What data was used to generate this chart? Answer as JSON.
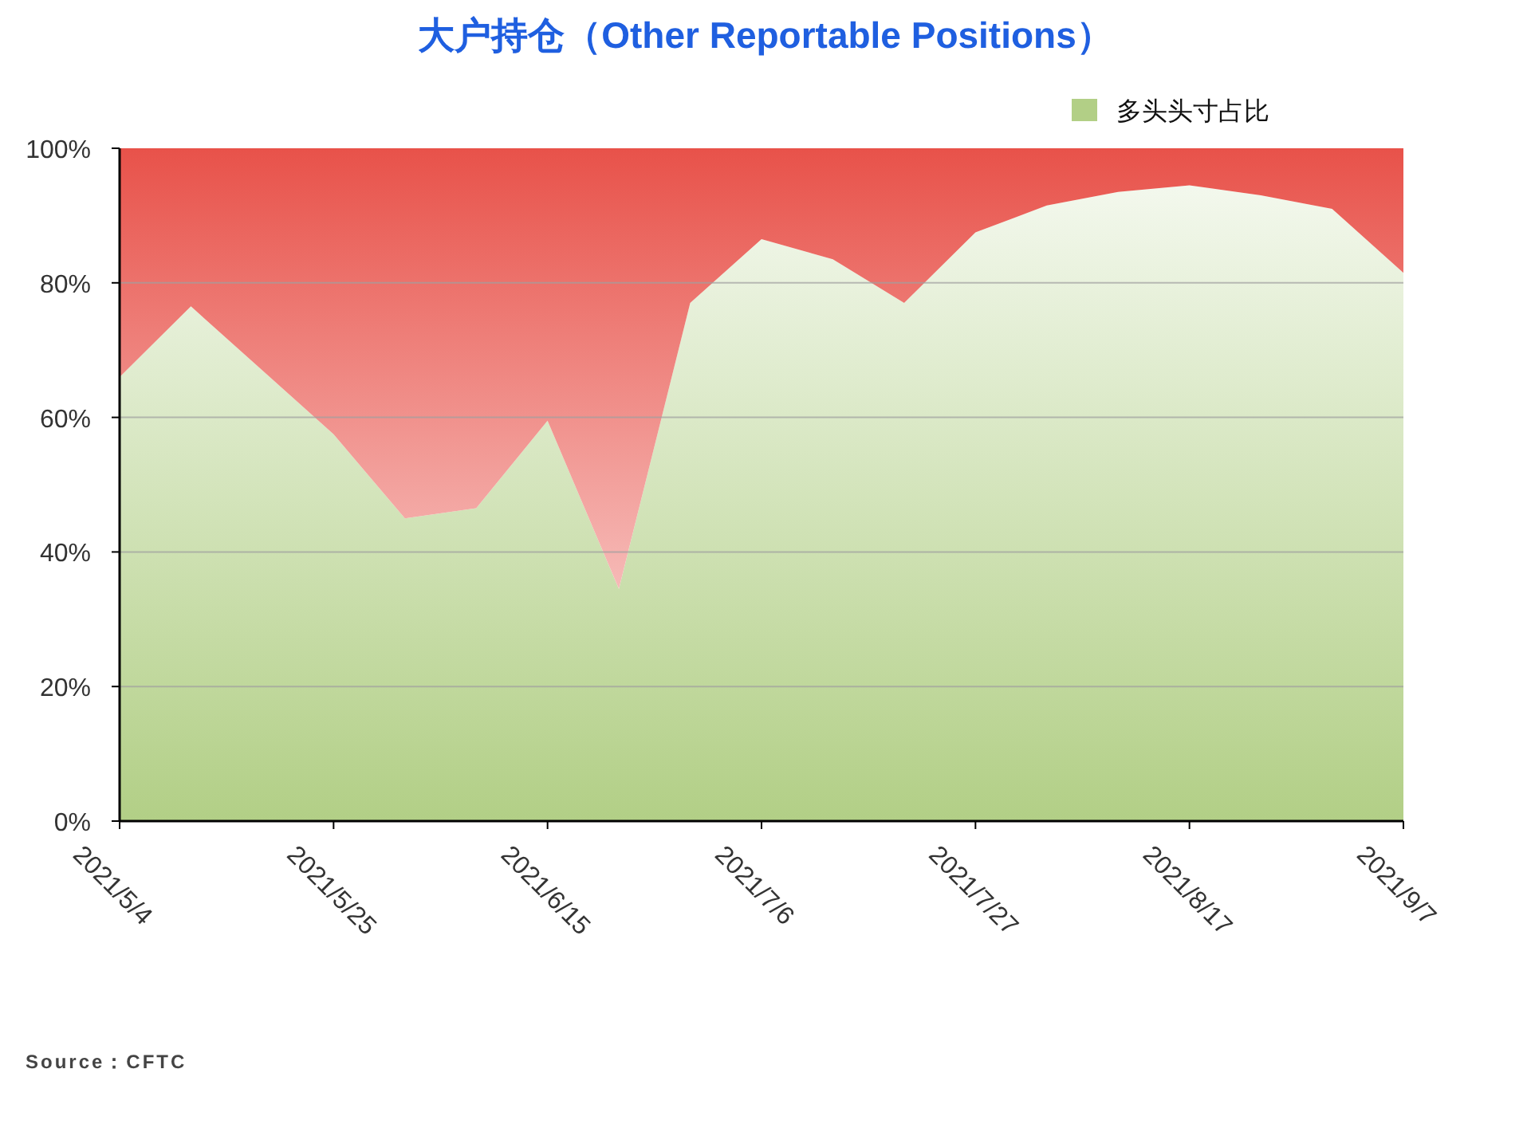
{
  "chart_data": {
    "type": "area",
    "title": "大户持仓（Other Reportable Positions）",
    "stacked": true,
    "x": [
      "2021-05-04",
      "2021-05-11",
      "2021-05-18",
      "2021-05-25",
      "2021-06-01",
      "2021-06-08",
      "2021-06-15",
      "2021-06-22",
      "2021-06-29",
      "2021-07-06",
      "2021-07-13",
      "2021-07-20",
      "2021-07-27",
      "2021-08-03",
      "2021-08-10",
      "2021-08-17",
      "2021-08-24",
      "2021-08-31",
      "2021-09-07"
    ],
    "series": [
      {
        "name": "多头头寸占比",
        "color": "#b2cf86",
        "values": [
          66,
          76.5,
          67,
          57.5,
          45,
          46.5,
          59.5,
          34.5,
          77,
          86.5,
          83.5,
          77,
          87.5,
          91.5,
          93.5,
          94.5,
          93,
          91,
          81.5
        ]
      },
      {
        "color": "#e8524a",
        "values": [
          34,
          23.5,
          33,
          42.5,
          55,
          53.5,
          40.5,
          65.5,
          23,
          13.5,
          16.5,
          23,
          12.5,
          8.5,
          6.5,
          5.5,
          7,
          9,
          18.5
        ]
      }
    ],
    "xlim": [
      "2021-05-04",
      "2021-09-07"
    ],
    "xticks": [
      {
        "value": "2021-05-04",
        "label": "2021/5/4"
      },
      {
        "value": "2021-05-25",
        "label": "2021/5/25"
      },
      {
        "value": "2021-06-15",
        "label": "2021/6/15"
      },
      {
        "value": "2021-07-06",
        "label": "2021/7/6"
      },
      {
        "value": "2021-07-27",
        "label": "2021/7/27"
      },
      {
        "value": "2021-08-17",
        "label": "2021/8/17"
      },
      {
        "value": "2021-09-07",
        "label": "2021/9/7"
      }
    ],
    "ylim": [
      0,
      100
    ],
    "yticks": [
      {
        "value": 0,
        "label": "0%"
      },
      {
        "value": 20,
        "label": "20%"
      },
      {
        "value": 40,
        "label": "40%"
      },
      {
        "value": 60,
        "label": "60%"
      },
      {
        "value": 80,
        "label": "80%"
      },
      {
        "value": 100,
        "label": "100%"
      }
    ],
    "grid": "y",
    "legend": "top right",
    "annotations": [
      "Source：CFTC"
    ]
  }
}
